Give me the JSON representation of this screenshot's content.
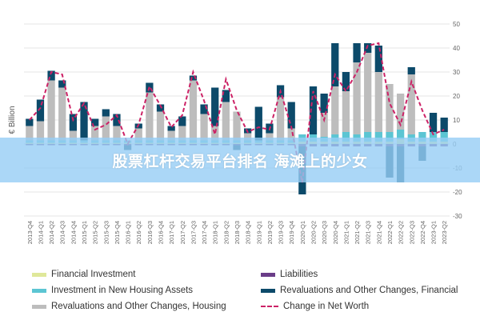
{
  "banner": {
    "text": "股票杠杆交易平台排名 海滩上的少女"
  },
  "chart_data": {
    "type": "bar",
    "ylabel": "€ Billion",
    "ylim": [
      -30,
      50
    ],
    "yticks": [
      50,
      40,
      30,
      20,
      10,
      0,
      -10,
      -20,
      -30
    ],
    "grid": true,
    "legend_position": "bottom",
    "categories": [
      "2013-Q4",
      "2014-Q1",
      "2014-Q2",
      "2014-Q3",
      "2014-Q4",
      "2015-Q1",
      "2015-Q2",
      "2015-Q3",
      "2015-Q4",
      "2016-Q1",
      "2016-Q2",
      "2016-Q3",
      "2016-Q4",
      "2017-Q1",
      "2017-Q2",
      "2017-Q3",
      "2017-Q4",
      "2018-Q1",
      "2018-Q2",
      "2018-Q3",
      "2018-Q4",
      "2019-Q1",
      "2019-Q2",
      "2019-Q3",
      "2019-Q4",
      "2020-Q1",
      "2020-Q2",
      "2020-Q3",
      "2020-Q4",
      "2021-Q1",
      "2021-Q2",
      "2021-Q3",
      "2021-Q4",
      "2022-Q1",
      "2022-Q2",
      "2022-Q3",
      "2022-Q4",
      "2023-Q1",
      "2023-Q2"
    ],
    "series": [
      {
        "name": "Financial Investment",
        "kind": "bar",
        "color": "#dfe89a",
        "values": [
          0.5,
          0.5,
          0.5,
          0.5,
          0.5,
          0.5,
          0.5,
          0.5,
          0.5,
          0.5,
          0.5,
          0.5,
          0.5,
          0.5,
          0.5,
          0.5,
          0.5,
          0.5,
          0.5,
          0.5,
          0.5,
          0.5,
          0.5,
          0.5,
          0.5,
          1,
          1,
          1,
          1,
          1,
          1,
          1,
          1,
          1,
          2,
          1,
          1,
          1,
          1
        ]
      },
      {
        "name": "Investment in New Housing Assets",
        "kind": "bar",
        "color": "#5cc5d3",
        "values": [
          1,
          1,
          1,
          1,
          1,
          1,
          1,
          1,
          1,
          1,
          1,
          1,
          1,
          1,
          1,
          1,
          1,
          1,
          1,
          1,
          1,
          1,
          1,
          1,
          1,
          3,
          3,
          2,
          3,
          4,
          3,
          4,
          4,
          4,
          4,
          3,
          4,
          4,
          4
        ]
      },
      {
        "name": "Revaluations and Other Changes, Housing",
        "kind": "bar",
        "color": "#bdbdbd",
        "values": [
          6,
          8,
          25,
          22,
          4,
          0,
          6,
          10,
          6,
          0,
          5,
          20,
          12,
          4,
          6,
          25,
          11,
          6,
          16,
          12,
          3,
          0,
          3,
          18,
          5,
          0,
          0,
          10,
          20,
          17,
          30,
          33,
          25,
          20,
          15,
          25,
          0,
          0,
          0
        ]
      },
      {
        "name": "Liabilities",
        "kind": "bar",
        "color": "#6a3d88",
        "values": [
          -0.5,
          -0.5,
          -0.5,
          -0.5,
          -0.5,
          -0.5,
          -0.5,
          -0.5,
          -0.5,
          -0.5,
          -0.5,
          -0.5,
          -0.5,
          -0.5,
          -0.5,
          -0.5,
          -0.5,
          -0.5,
          -0.5,
          -0.5,
          -0.5,
          -0.5,
          -0.5,
          -0.5,
          -0.5,
          -1,
          -1,
          -1,
          -1,
          -1,
          -1,
          -1,
          -1,
          -1,
          -1,
          -1,
          -1,
          -1,
          -1
        ]
      },
      {
        "name": "Revaluations and Other Changes, Financial",
        "kind": "bar",
        "color": "#0c4a6a",
        "values": [
          3,
          9,
          4,
          3,
          7,
          16,
          3,
          3,
          5,
          -2,
          2,
          4,
          3,
          2,
          4,
          2,
          4,
          16,
          5,
          -2,
          2,
          14,
          4,
          5,
          11,
          -20,
          20,
          8,
          18,
          8,
          8,
          4,
          11,
          -13,
          -15,
          3,
          -6,
          8,
          6
        ]
      },
      {
        "name": "Change in Net Worth",
        "kind": "line",
        "color": "#cc2266",
        "values": [
          10,
          15,
          30,
          29,
          10,
          17,
          6,
          8,
          12,
          0,
          8,
          24,
          16,
          7,
          12,
          30,
          18,
          4,
          27,
          14,
          5,
          7,
          6,
          22,
          7,
          -16,
          22,
          10,
          29,
          22,
          30,
          41,
          42,
          17,
          8,
          26,
          14,
          4,
          6
        ]
      }
    ]
  }
}
